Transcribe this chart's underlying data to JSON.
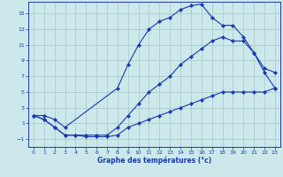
{
  "background_color": "#cce8ea",
  "grid_color": "#aacccc",
  "line_color": "#1a3ab0",
  "xlabel": "Graphe des températures (°c)",
  "xlim": [
    -0.5,
    23.5
  ],
  "ylim": [
    -2.0,
    16.5
  ],
  "xticks": [
    0,
    1,
    2,
    3,
    4,
    5,
    6,
    7,
    8,
    9,
    10,
    11,
    12,
    13,
    14,
    15,
    16,
    17,
    18,
    19,
    20,
    21,
    22,
    23
  ],
  "yticks": [
    -1,
    1,
    3,
    5,
    7,
    9,
    11,
    13,
    15
  ],
  "curve1_x": [
    0,
    1,
    2,
    3,
    8,
    9,
    10,
    11,
    12,
    13,
    14,
    15,
    16,
    17,
    18,
    19,
    20,
    21,
    22,
    23
  ],
  "curve1_y": [
    2,
    2,
    1.5,
    0.5,
    5.5,
    8.5,
    11,
    13,
    14,
    14.5,
    15.5,
    16,
    16.2,
    14.5,
    13.5,
    13.5,
    12,
    10,
    7.5,
    5.5
  ],
  "curve2_x": [
    0,
    1,
    2,
    3,
    4,
    5,
    6,
    7,
    8,
    9,
    10,
    11,
    12,
    13,
    14,
    15,
    16,
    17,
    18,
    19,
    20,
    21,
    22,
    23
  ],
  "curve2_y": [
    2,
    1.5,
    0.5,
    -0.5,
    -0.5,
    -0.5,
    -0.5,
    -0.5,
    0.5,
    2,
    3.5,
    5,
    6,
    7,
    8.5,
    9.5,
    10.5,
    11.5,
    12,
    11.5,
    11.5,
    10,
    8,
    7.5
  ],
  "curve3_x": [
    0,
    1,
    2,
    3,
    4,
    5,
    6,
    7,
    8,
    9,
    10,
    11,
    12,
    13,
    14,
    15,
    16,
    17,
    18,
    19,
    20,
    21,
    22,
    23
  ],
  "curve3_y": [
    2,
    1.5,
    0.5,
    -0.5,
    -0.5,
    -0.7,
    -0.7,
    -0.7,
    -0.5,
    0.5,
    1,
    1.5,
    2,
    2.5,
    3,
    3.5,
    4,
    4.5,
    5,
    5,
    5,
    5,
    5,
    5.5
  ]
}
